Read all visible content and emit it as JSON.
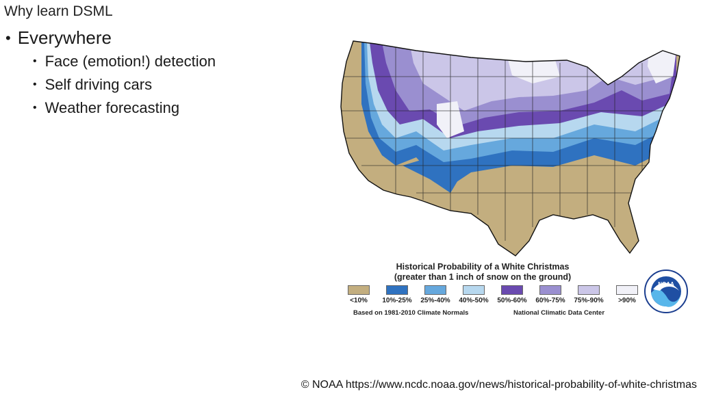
{
  "slide": {
    "title": "Why learn DSML",
    "bullet": "Everywhere",
    "subbullets": [
      "Face (emotion!) detection",
      "Self driving cars",
      "Weather forecasting"
    ]
  },
  "map": {
    "title_line1": "Historical Probability of a White Christmas",
    "title_line2": "(greater than 1 inch of snow on the ground)",
    "legend": [
      {
        "label": "<10%",
        "color": "#c3ae7f"
      },
      {
        "label": "10%-25%",
        "color": "#2f72c0"
      },
      {
        "label": "25%-40%",
        "color": "#66a8dd"
      },
      {
        "label": "40%-50%",
        "color": "#b7d8ef"
      },
      {
        "label": "50%-60%",
        "color": "#6a4ab0"
      },
      {
        "label": "60%-75%",
        "color": "#9a8fd0"
      },
      {
        "label": "75%-90%",
        "color": "#cbc6e8"
      },
      {
        "label": ">90%",
        "color": "#f1f1f8"
      }
    ],
    "note_left": "Based on 1981-2010 Climate Normals",
    "note_right": "National Climatic Data Center",
    "logo_text": "NOAA"
  },
  "credit": "© NOAA https://www.ncdc.noaa.gov/news/historical-probability-of-white-christmas"
}
